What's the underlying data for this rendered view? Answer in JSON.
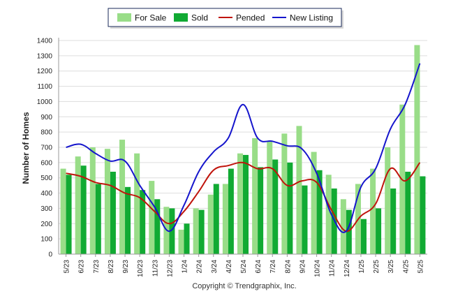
{
  "chart_data": {
    "type": "bar",
    "title": "",
    "xlabel": "",
    "ylabel": "Number of Homes",
    "ylim": [
      0,
      1400
    ],
    "yticks": [
      0,
      100,
      200,
      300,
      400,
      500,
      600,
      700,
      800,
      900,
      1000,
      1100,
      1200,
      1300,
      1400
    ],
    "grid": true,
    "legend_position": "top-center",
    "categories": [
      "5/23",
      "6/23",
      "7/23",
      "8/23",
      "9/23",
      "10/23",
      "11/23",
      "12/23",
      "1/24",
      "2/24",
      "3/24",
      "4/24",
      "5/24",
      "6/24",
      "7/24",
      "8/24",
      "9/24",
      "10/24",
      "11/24",
      "12/24",
      "1/25",
      "2/25",
      "3/25",
      "4/25",
      "5/25"
    ],
    "series": [
      {
        "name": "For Sale",
        "kind": "bar",
        "color": "#99dd88",
        "values": [
          560,
          640,
          700,
          690,
          750,
          660,
          480,
          310,
          160,
          300,
          390,
          460,
          660,
          760,
          740,
          790,
          840,
          670,
          520,
          360,
          460,
          560,
          700,
          980,
          1370
        ]
      },
      {
        "name": "Sold",
        "kind": "bar",
        "color": "#11aa33",
        "values": [
          520,
          580,
          460,
          540,
          440,
          420,
          360,
          300,
          200,
          290,
          460,
          560,
          650,
          570,
          620,
          600,
          450,
          550,
          430,
          290,
          230,
          300,
          430,
          540,
          510
        ]
      },
      {
        "name": "Pended",
        "kind": "line",
        "color": "#c0140c",
        "values": [
          530,
          510,
          470,
          450,
          400,
          370,
          280,
          200,
          280,
          410,
          550,
          580,
          600,
          560,
          560,
          450,
          480,
          470,
          290,
          150,
          250,
          330,
          560,
          480,
          600
        ]
      },
      {
        "name": "New Listing",
        "kind": "line",
        "color": "#1515cc",
        "values": [
          700,
          720,
          660,
          610,
          610,
          450,
          310,
          150,
          320,
          540,
          670,
          760,
          980,
          760,
          740,
          710,
          690,
          530,
          260,
          150,
          440,
          560,
          820,
          980,
          1250
        ]
      }
    ]
  },
  "footer": {
    "copyright": "Copyright © Trendgraphix, Inc."
  }
}
